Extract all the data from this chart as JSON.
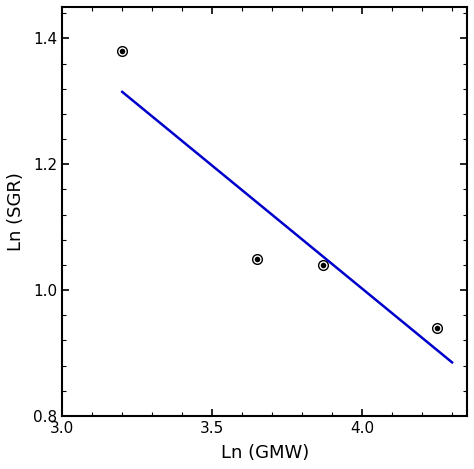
{
  "scatter_x": [
    3.2,
    3.65,
    3.87,
    4.25
  ],
  "scatter_y": [
    1.38,
    1.05,
    1.04,
    0.94
  ],
  "line_x": [
    3.2,
    4.3
  ],
  "line_y": [
    1.315,
    0.885
  ],
  "line_color": "#0000cc",
  "marker_facecolor": "white",
  "marker_edge_color": "black",
  "marker_size": 7,
  "dot_size": 4,
  "xlabel": "Ln (GMW)",
  "ylabel": "Ln (SGR)",
  "xlim": [
    3.0,
    4.35
  ],
  "ylim": [
    0.8,
    1.45
  ],
  "xticks": [
    3.0,
    3.5,
    4.0
  ],
  "yticks": [
    0.8,
    1.0,
    1.2,
    1.4
  ],
  "xlabel_fontsize": 13,
  "ylabel_fontsize": 13,
  "tick_fontsize": 11,
  "line_width": 1.8,
  "spine_linewidth": 1.5
}
